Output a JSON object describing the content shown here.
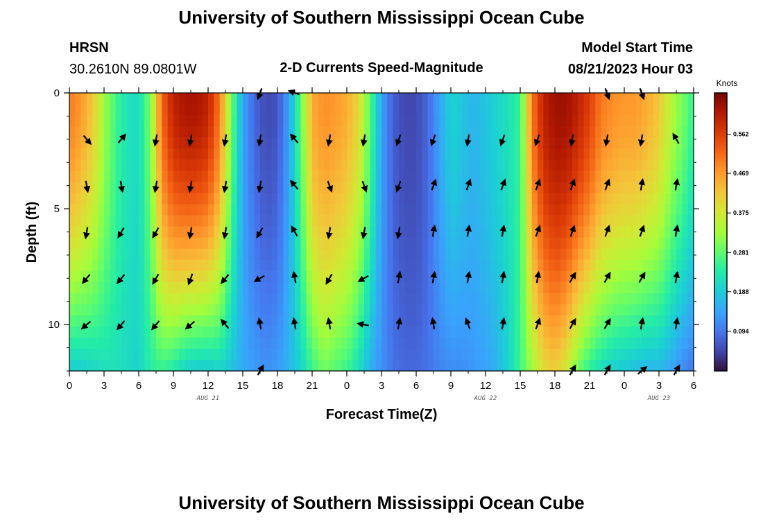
{
  "page": {
    "title": "University of Southern Mississippi Ocean Cube",
    "station": "HRSN",
    "coordinates": "30.2610N  89.0801W",
    "plot_title": "2-D Currents Speed-Magnitude",
    "model_start_label": "Model Start Time",
    "model_start_value": "08/21/2023 Hour 03",
    "footer_title": "University of Southern Mississippi Ocean Cube"
  },
  "chart_data": {
    "type": "heatmap",
    "title": "2-D Currents Speed-Magnitude",
    "xlabel": "Forecast Time(Z)",
    "ylabel": "Depth (ft)",
    "xlim": [
      0,
      54
    ],
    "ylim": [
      12,
      0
    ],
    "x_ticks": [
      0,
      3,
      6,
      9,
      12,
      15,
      18,
      21,
      24,
      27,
      30,
      33,
      36,
      39,
      42,
      45,
      48,
      51,
      54
    ],
    "x_tick_labels": [
      "0",
      "3",
      "6",
      "9",
      "12",
      "15",
      "18",
      "21",
      "0",
      "3",
      "6",
      "9",
      "12",
      "15",
      "18",
      "21",
      "0",
      "3",
      "6"
    ],
    "y_ticks": [
      0,
      5,
      10
    ],
    "y_tick_labels": [
      "0",
      "5",
      "10"
    ],
    "date_labels": [
      {
        "x": 12,
        "text": "AUG 21"
      },
      {
        "x": 36,
        "text": "AUG 22"
      },
      {
        "x": 51,
        "text": "AUG 23"
      }
    ],
    "colorbar": {
      "label": "Knots",
      "min": 0,
      "max": 0.66,
      "ticks": [
        0.094,
        0.188,
        0.281,
        0.375,
        0.469,
        0.562
      ],
      "tick_labels": [
        "0.094",
        "0.188",
        "0.281",
        "0.375",
        "0.469",
        "0.562"
      ]
    },
    "time_profile": {
      "hours": [
        0,
        1,
        2,
        3,
        4,
        5,
        6,
        7,
        8,
        9,
        10,
        11,
        12,
        13,
        14,
        15,
        16,
        17,
        18,
        19,
        20,
        21,
        22,
        23,
        24,
        25,
        26,
        27,
        28,
        29,
        30,
        31,
        32,
        33,
        34,
        35,
        36,
        37,
        38,
        39,
        40,
        41,
        42,
        43,
        44,
        45,
        46,
        47,
        48,
        49,
        50,
        51,
        52,
        53,
        54
      ],
      "surface_speed_knots": [
        0.5,
        0.47,
        0.42,
        0.33,
        0.26,
        0.22,
        0.21,
        0.3,
        0.52,
        0.6,
        0.62,
        0.62,
        0.6,
        0.5,
        0.3,
        0.14,
        0.08,
        0.05,
        0.06,
        0.14,
        0.28,
        0.45,
        0.48,
        0.47,
        0.45,
        0.4,
        0.28,
        0.14,
        0.07,
        0.05,
        0.05,
        0.08,
        0.14,
        0.2,
        0.18,
        0.16,
        0.18,
        0.2,
        0.22,
        0.25,
        0.5,
        0.6,
        0.63,
        0.63,
        0.6,
        0.56,
        0.5,
        0.48,
        0.47,
        0.47,
        0.45,
        0.42,
        0.35,
        0.3,
        0.25
      ],
      "bottom_speed_knots": [
        0.2,
        0.2,
        0.21,
        0.22,
        0.22,
        0.21,
        0.2,
        0.24,
        0.26,
        0.24,
        0.21,
        0.2,
        0.2,
        0.21,
        0.18,
        0.15,
        0.13,
        0.12,
        0.13,
        0.16,
        0.2,
        0.26,
        0.3,
        0.28,
        0.26,
        0.22,
        0.16,
        0.12,
        0.09,
        0.08,
        0.08,
        0.09,
        0.11,
        0.12,
        0.12,
        0.13,
        0.14,
        0.16,
        0.2,
        0.26,
        0.33,
        0.4,
        0.42,
        0.38,
        0.3,
        0.25,
        0.22,
        0.2,
        0.19,
        0.18,
        0.17,
        0.17,
        0.15,
        0.12,
        0.1
      ]
    },
    "vector_times": [
      1.5,
      4.5,
      7.5,
      10.5,
      13.5,
      16.5,
      19.5,
      22.5,
      25.5,
      28.5,
      31.5,
      34.5,
      37.5,
      40.5,
      43.5,
      46.5,
      49.5,
      52.5
    ],
    "vector_depths": [
      0,
      2,
      4,
      6,
      8,
      10,
      12
    ],
    "vector_directions_deg": [
      [
        null,
        null,
        null,
        null,
        null,
        200,
        290,
        null,
        null,
        null,
        null,
        null,
        null,
        null,
        null,
        160,
        160,
        null
      ],
      [
        140,
        40,
        190,
        190,
        190,
        190,
        320,
        190,
        190,
        200,
        200,
        190,
        200,
        200,
        190,
        190,
        190,
        330
      ],
      [
        170,
        170,
        190,
        190,
        190,
        190,
        320,
        160,
        160,
        200,
        20,
        20,
        20,
        20,
        20,
        20,
        10,
        10
      ],
      [
        190,
        210,
        210,
        190,
        190,
        210,
        330,
        190,
        190,
        190,
        10,
        10,
        10,
        20,
        20,
        20,
        20,
        10
      ],
      [
        220,
        220,
        210,
        200,
        220,
        240,
        350,
        210,
        240,
        10,
        10,
        10,
        10,
        10,
        30,
        30,
        30,
        10
      ],
      [
        230,
        220,
        220,
        230,
        320,
        350,
        350,
        350,
        280,
        10,
        350,
        340,
        10,
        20,
        30,
        30,
        10,
        10
      ],
      [
        null,
        null,
        null,
        null,
        null,
        30,
        null,
        null,
        null,
        null,
        null,
        null,
        null,
        null,
        30,
        30,
        50,
        30
      ]
    ]
  }
}
